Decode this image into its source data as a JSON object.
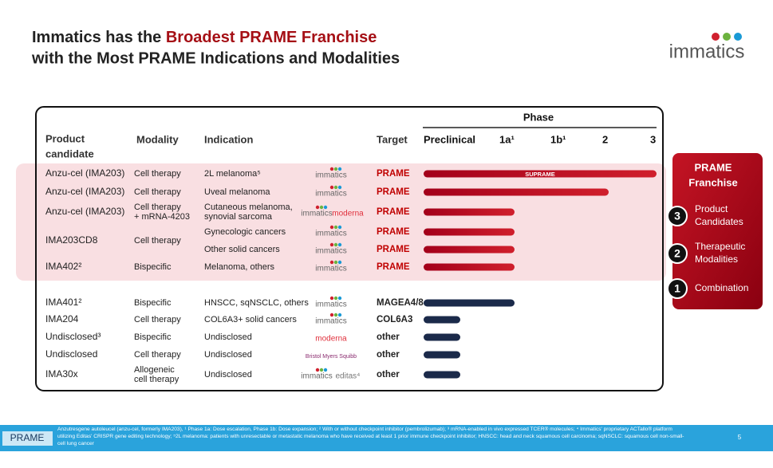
{
  "header": {
    "title_prefix": "Immatics has the ",
    "title_highlight": "Broadest PRAME Franchise",
    "title_line2": "with the Most PRAME Indications and Modalities",
    "logo": "immatics"
  },
  "table": {
    "headers": {
      "product": "Product\ncandidate",
      "modality": "Modality",
      "indication": "Indication",
      "target": "Target",
      "phase": "Phase",
      "phases": [
        "Preclinical",
        "1a¹",
        "1b¹",
        "2",
        "3"
      ]
    },
    "rows": [
      {
        "product": "Anzu-cel (IMA203)",
        "modality": "Cell therapy",
        "indication": "2L melanoma⁵",
        "partners": [
          "immatics"
        ],
        "target": "PRAME",
        "bar_label": "SUPRAME"
      },
      {
        "product": "Anzu-cel (IMA203)",
        "modality": "Cell therapy",
        "indication": "Uveal melanoma",
        "partners": [
          "immatics"
        ],
        "target": "PRAME"
      },
      {
        "product": "Anzu-cel (IMA203)",
        "modality": "Cell therapy\n+ mRNA-4203",
        "indication": "Cutaneous melanoma,\nsynovial sarcoma",
        "partners": [
          "immatics",
          "moderna"
        ],
        "target": "PRAME"
      },
      {
        "product": "IMA203CD8",
        "modality": "Cell therapy",
        "indication": "Gynecologic cancers",
        "partners": [
          "immatics"
        ],
        "target": "PRAME"
      },
      {
        "indication": "Other solid cancers",
        "partners": [
          "immatics"
        ],
        "target": "PRAME"
      },
      {
        "product": "IMA402²",
        "modality": "Bispecific",
        "indication": "Melanoma, others",
        "partners": [
          "immatics"
        ],
        "target": "PRAME"
      },
      {
        "product": "IMA401²",
        "modality": "Bispecific",
        "indication": "HNSCC, sqNSCLC, others",
        "partners": [
          "immatics"
        ],
        "target": "MAGEA4/8"
      },
      {
        "product": "IMA204",
        "modality": "Cell therapy",
        "indication": "COL6A3+ solid cancers",
        "partners": [
          "immatics"
        ],
        "target": "COL6A3"
      },
      {
        "product": "Undisclosed³",
        "modality": "Bispecific",
        "indication": "Undisclosed",
        "partners": [
          "moderna"
        ],
        "target": "other"
      },
      {
        "product": "Undisclosed",
        "modality": "Cell therapy",
        "indication": "Undisclosed",
        "partners": [
          "Bristol Myers Squibb"
        ],
        "target": "other"
      },
      {
        "product": "IMA30x",
        "modality": "Allogeneic\ncell therapy",
        "indication": "Undisclosed",
        "partners": [
          "immatics",
          "editas⁴"
        ],
        "target": "other"
      }
    ]
  },
  "panel": {
    "title": "PRAME\nFranchise",
    "items": [
      {
        "number": 3,
        "label": "Product\nCandidates"
      },
      {
        "number": 2,
        "label": "Therapeutic\nModalities"
      },
      {
        "number": 1,
        "label": "Combination"
      }
    ]
  },
  "footer": {
    "tag": "PRAME",
    "note": "Anzutresgene autoleucel (anzu-cel, formerly IMA203), ¹ Phase 1a: Dose escalation, Phase 1b: Dose expansion; ² With or without checkpoint inhibitor (pembrolizumab); ³ mRNA-enabled in vivo expressed TCER® molecules; ⁴ Immatics' proprietary ACTallo® platform utilizing Editas' CRISPR gene editing technology; ⁵2L melanoma: patients with unresectable or metastatic melanoma who have received at least 1 prior immune checkpoint inhibitor; HNSCC: head and neck squamous cell carcinoma; sqNSCLC: squamous cell non-small-cell lung cancer",
    "page": "5"
  }
}
